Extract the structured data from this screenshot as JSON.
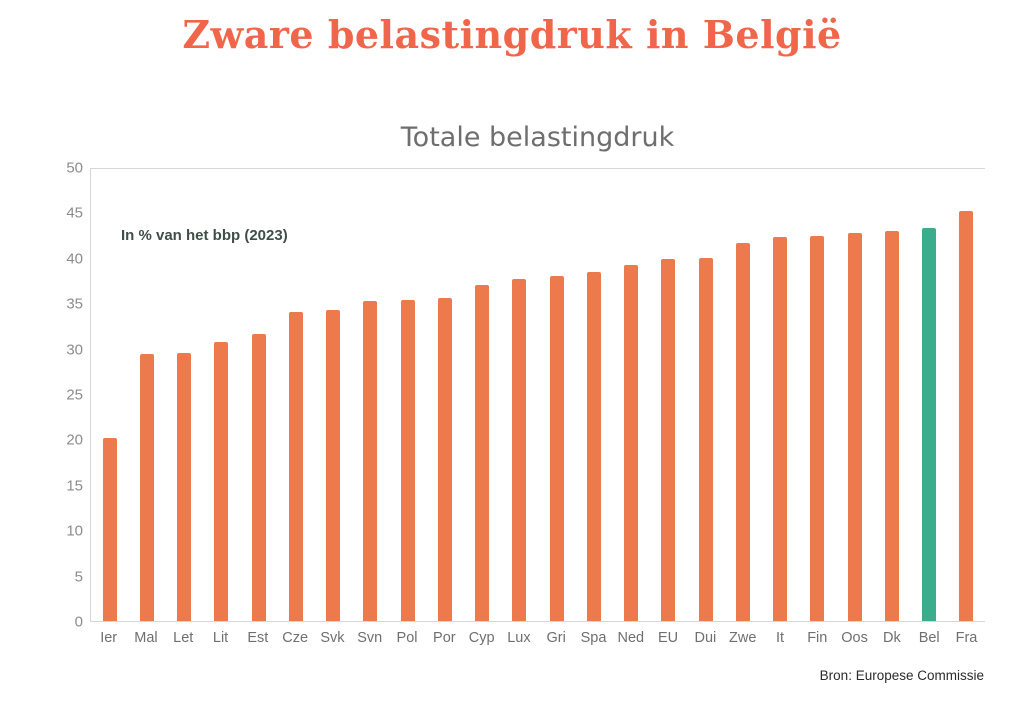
{
  "page": {
    "title": "Zware belastingdruk in België"
  },
  "chart": {
    "subtitle": "Totale belastingdruk",
    "annotation": "In % van het bbp (2023)",
    "source": "Bron: Europese Commissie"
  },
  "colors": {
    "title": "#F0664A",
    "bar": "#EC7A4D",
    "highlight": "#3BAD8C",
    "axis": "#d6d6d6"
  },
  "chart_data": {
    "type": "bar",
    "title": "Totale belastingdruk",
    "subtitle_note": "In % van het bbp (2023)",
    "categories": [
      "Ier",
      "Mal",
      "Let",
      "Lit",
      "Est",
      "Cze",
      "Svk",
      "Svn",
      "Pol",
      "Por",
      "Cyp",
      "Lux",
      "Gri",
      "Spa",
      "Ned",
      "EU",
      "Dui",
      "Zwe",
      "It",
      "Fin",
      "Oos",
      "Dk",
      "Bel",
      "Fra"
    ],
    "values": [
      20.2,
      29.5,
      29.6,
      30.9,
      31.8,
      34.2,
      34.4,
      35.4,
      35.5,
      35.7,
      37.2,
      37.8,
      38.2,
      38.6,
      39.4,
      40.0,
      40.2,
      41.8,
      42.5,
      42.6,
      42.9,
      43.1,
      43.5,
      45.4
    ],
    "highlight_category": "Bel",
    "xlabel": "",
    "ylabel": "",
    "ylim": [
      0,
      50
    ],
    "yticks": [
      0,
      5,
      10,
      15,
      20,
      25,
      30,
      35,
      40,
      45,
      50
    ],
    "grid": "off",
    "legend": "none"
  }
}
